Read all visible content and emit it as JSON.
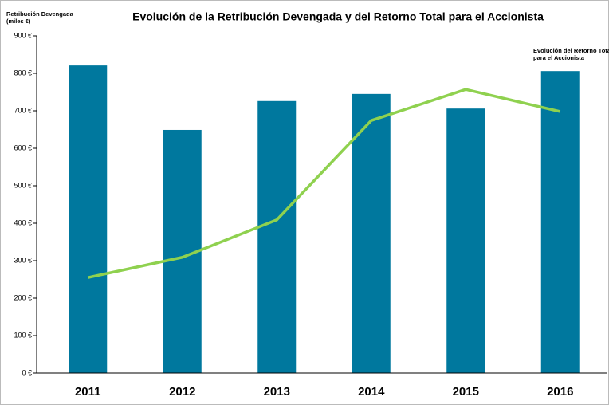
{
  "chart_data": {
    "type": "bar_line",
    "title": "Evolución de la Retribución Devengada y del Retorno Total para el Accionista",
    "y_label": [
      "Retribución Devengada",
      "(miles €)"
    ],
    "categories": [
      "2011",
      "2012",
      "2013",
      "2014",
      "2015",
      "2016"
    ],
    "series": [
      {
        "type": "bar",
        "color": "#00789e",
        "values": [
          821,
          649,
          726,
          745,
          706,
          806
        ]
      },
      {
        "type": "line",
        "name": "Evolución del Retorno Total para el Accionista",
        "color": "#8fd14f",
        "values": [
          255,
          309,
          409,
          674,
          757,
          698
        ]
      }
    ],
    "ylim": [
      0,
      900
    ],
    "yticks": [
      {
        "value": 0,
        "label": "0 €"
      },
      {
        "value": 100,
        "label": "100 €"
      },
      {
        "value": 200,
        "label": "200 €"
      },
      {
        "value": 300,
        "label": "300 €"
      },
      {
        "value": 400,
        "label": "400 €"
      },
      {
        "value": 500,
        "label": "500 €"
      },
      {
        "value": 600,
        "label": "600 €"
      },
      {
        "value": 700,
        "label": "700 €"
      },
      {
        "value": 800,
        "label": "800 €"
      },
      {
        "value": 900,
        "label": "900 €"
      }
    ]
  }
}
